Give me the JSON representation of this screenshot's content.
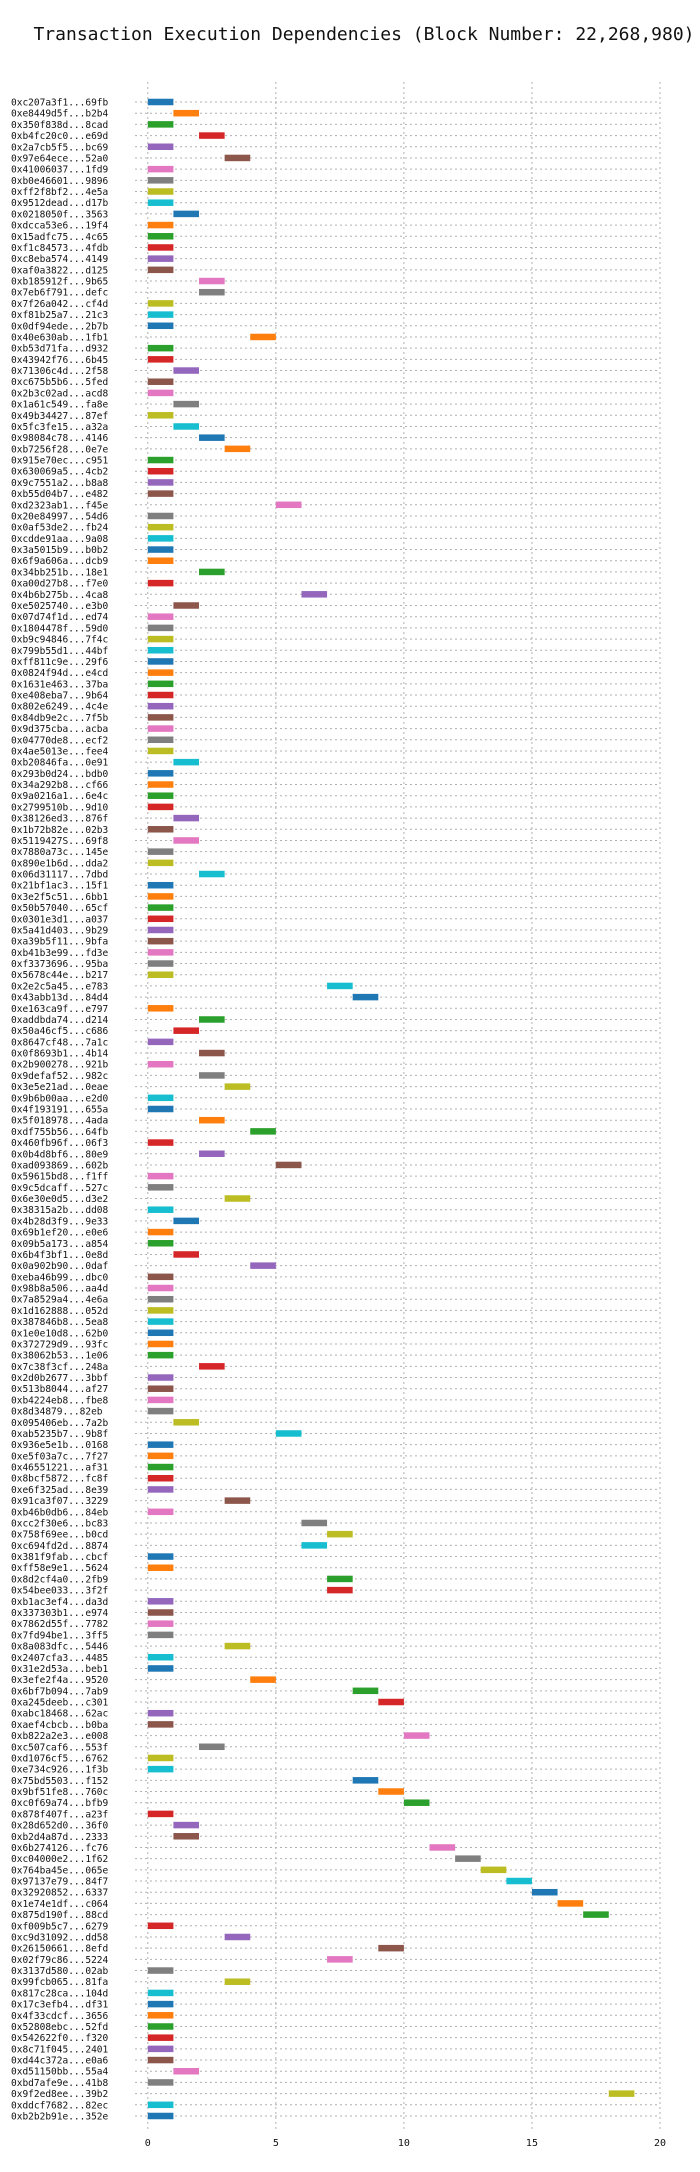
{
  "chart_data": {
    "type": "bar",
    "orientation": "horizontal-gantt",
    "title": "Transaction Execution Dependencies (Block Number: 22,268,980)",
    "xlabel": "",
    "ylabel": "",
    "xlim": [
      -0.5,
      20
    ],
    "xticks": [
      0,
      5,
      10,
      15,
      20
    ],
    "grid": true,
    "legend": "none",
    "rows": [
      {
        "label": "0xc207a3f1...69fb",
        "start": 0,
        "color": "#1f77b4"
      },
      {
        "label": "0xe8449d5f...b2b4",
        "start": 1,
        "color": "#ff7f0e"
      },
      {
        "label": "0x350f838d...8cad",
        "start": 0,
        "color": "#2ca02c"
      },
      {
        "label": "0xb4fc20c0...e69d",
        "start": 2,
        "color": "#d62728"
      },
      {
        "label": "0x2a7cb5f5...bc69",
        "start": 0,
        "color": "#9467bd"
      },
      {
        "label": "0x97e64ece...52a0",
        "start": 3,
        "color": "#8c564b"
      },
      {
        "label": "0x41006037...1fd9",
        "start": 0,
        "color": "#e377c2"
      },
      {
        "label": "0xb0e46601...9896",
        "start": 0,
        "color": "#7f7f7f"
      },
      {
        "label": "0xff2f8bf2...4e5a",
        "start": 0,
        "color": "#bcbd22"
      },
      {
        "label": "0x9512dead...d17b",
        "start": 0,
        "color": "#17becf"
      },
      {
        "label": "0x0218050f...3563",
        "start": 1,
        "color": "#1f77b4"
      },
      {
        "label": "0xdcca53e6...19f4",
        "start": 0,
        "color": "#ff7f0e"
      },
      {
        "label": "0x15adfc75...4c65",
        "start": 0,
        "color": "#2ca02c"
      },
      {
        "label": "0xf1c84573...4fdb",
        "start": 0,
        "color": "#d62728"
      },
      {
        "label": "0xc8eba574...4149",
        "start": 0,
        "color": "#9467bd"
      },
      {
        "label": "0xaf0a3822...d125",
        "start": 0,
        "color": "#8c564b"
      },
      {
        "label": "0xb185912f...9b65",
        "start": 2,
        "color": "#e377c2"
      },
      {
        "label": "0x7eb6f791...defc",
        "start": 2,
        "color": "#7f7f7f"
      },
      {
        "label": "0x7f26a042...cf4d",
        "start": 0,
        "color": "#bcbd22"
      },
      {
        "label": "0xf81b25a7...21c3",
        "start": 0,
        "color": "#17becf"
      },
      {
        "label": "0x0df94ede...2b7b",
        "start": 0,
        "color": "#1f77b4"
      },
      {
        "label": "0x40e630ab...1fb1",
        "start": 4,
        "color": "#ff7f0e"
      },
      {
        "label": "0xb53d71fa...d932",
        "start": 0,
        "color": "#2ca02c"
      },
      {
        "label": "0x43942f76...6b45",
        "start": 0,
        "color": "#d62728"
      },
      {
        "label": "0x71306c4d...2f58",
        "start": 1,
        "color": "#9467bd"
      },
      {
        "label": "0xc675b5b6...5fed",
        "start": 0,
        "color": "#8c564b"
      },
      {
        "label": "0x2b3c02ad...acd8",
        "start": 0,
        "color": "#e377c2"
      },
      {
        "label": "0x1a61c549...fa8e",
        "start": 1,
        "color": "#7f7f7f"
      },
      {
        "label": "0x49b34427...87ef",
        "start": 0,
        "color": "#bcbd22"
      },
      {
        "label": "0x5fc3fe15...a32a",
        "start": 1,
        "color": "#17becf"
      },
      {
        "label": "0x98084c78...4146",
        "start": 2,
        "color": "#1f77b4"
      },
      {
        "label": "0xb7256f28...0e7e",
        "start": 3,
        "color": "#ff7f0e"
      },
      {
        "label": "0x915e70ec...c951",
        "start": 0,
        "color": "#2ca02c"
      },
      {
        "label": "0x630069a5...4cb2",
        "start": 0,
        "color": "#d62728"
      },
      {
        "label": "0x9c7551a2...b8a8",
        "start": 0,
        "color": "#9467bd"
      },
      {
        "label": "0xb55d04b7...e482",
        "start": 0,
        "color": "#8c564b"
      },
      {
        "label": "0xd2323ab1...f45e",
        "start": 5,
        "color": "#e377c2"
      },
      {
        "label": "0x20e84997...54d6",
        "start": 0,
        "color": "#7f7f7f"
      },
      {
        "label": "0x0af53de2...fb24",
        "start": 0,
        "color": "#bcbd22"
      },
      {
        "label": "0xcdde91aa...9a08",
        "start": 0,
        "color": "#17becf"
      },
      {
        "label": "0x3a5015b9...b0b2",
        "start": 0,
        "color": "#1f77b4"
      },
      {
        "label": "0x6f9a606a...dcb9",
        "start": 0,
        "color": "#ff7f0e"
      },
      {
        "label": "0x34bb251b...18e1",
        "start": 2,
        "color": "#2ca02c"
      },
      {
        "label": "0xa00d27b8...f7e0",
        "start": 0,
        "color": "#d62728"
      },
      {
        "label": "0x4b6b275b...4ca8",
        "start": 6,
        "color": "#9467bd"
      },
      {
        "label": "0xe5025740...e3b0",
        "start": 1,
        "color": "#8c564b"
      },
      {
        "label": "0x07d74f1d...ed74",
        "start": 0,
        "color": "#e377c2"
      },
      {
        "label": "0x1804478f...59d0",
        "start": 0,
        "color": "#7f7f7f"
      },
      {
        "label": "0xb9c94846...7f4c",
        "start": 0,
        "color": "#bcbd22"
      },
      {
        "label": "0x799b55d1...44bf",
        "start": 0,
        "color": "#17becf"
      },
      {
        "label": "0xff811c9e...29f6",
        "start": 0,
        "color": "#1f77b4"
      },
      {
        "label": "0x0824f94d...e4cd",
        "start": 0,
        "color": "#ff7f0e"
      },
      {
        "label": "0x1631e463...37ba",
        "start": 0,
        "color": "#2ca02c"
      },
      {
        "label": "0xe408eba7...9b64",
        "start": 0,
        "color": "#d62728"
      },
      {
        "label": "0x802e6249...4c4e",
        "start": 0,
        "color": "#9467bd"
      },
      {
        "label": "0x84db9e2c...7f5b",
        "start": 0,
        "color": "#8c564b"
      },
      {
        "label": "0x9d375cba...acba",
        "start": 0,
        "color": "#e377c2"
      },
      {
        "label": "0x04770de8...ecf2",
        "start": 0,
        "color": "#7f7f7f"
      },
      {
        "label": "0x4ae5013e...fee4",
        "start": 0,
        "color": "#bcbd22"
      },
      {
        "label": "0xb20846fa...0e91",
        "start": 1,
        "color": "#17becf"
      },
      {
        "label": "0x293b0d24...bdb0",
        "start": 0,
        "color": "#1f77b4"
      },
      {
        "label": "0x34a292b8...cf66",
        "start": 0,
        "color": "#ff7f0e"
      },
      {
        "label": "0x9a0216a1...6e4c",
        "start": 0,
        "color": "#2ca02c"
      },
      {
        "label": "0x2799510b...9d10",
        "start": 0,
        "color": "#d62728"
      },
      {
        "label": "0x38126ed3...876f",
        "start": 1,
        "color": "#9467bd"
      },
      {
        "label": "0x1b72b82e...02b3",
        "start": 0,
        "color": "#8c564b"
      },
      {
        "label": "0x5119427S...69f8",
        "start": 1,
        "color": "#e377c2"
      },
      {
        "label": "0x7880a73c...145e",
        "start": 0,
        "color": "#7f7f7f"
      },
      {
        "label": "0x890e1b6d...dda2",
        "start": 0,
        "color": "#bcbd22"
      },
      {
        "label": "0x06d31117...7dbd",
        "start": 2,
        "color": "#17becf"
      },
      {
        "label": "0x21bf1ac3...15f1",
        "start": 0,
        "color": "#1f77b4"
      },
      {
        "label": "0x3e2f5c51...6bb1",
        "start": 0,
        "color": "#ff7f0e"
      },
      {
        "label": "0x50b57040...65cf",
        "start": 0,
        "color": "#2ca02c"
      },
      {
        "label": "0x0301e3d1...a037",
        "start": 0,
        "color": "#d62728"
      },
      {
        "label": "0x5a41d403...9b29",
        "start": 0,
        "color": "#9467bd"
      },
      {
        "label": "0xa39b5f11...9bfa",
        "start": 0,
        "color": "#8c564b"
      },
      {
        "label": "0xb41b3e99...fd3e",
        "start": 0,
        "color": "#e377c2"
      },
      {
        "label": "0xf3373696...95ba",
        "start": 0,
        "color": "#7f7f7f"
      },
      {
        "label": "0x5678c44e...b217",
        "start": 0,
        "color": "#bcbd22"
      },
      {
        "label": "0x2e2c5a45...e783",
        "start": 7,
        "color": "#17becf"
      },
      {
        "label": "0x43abb13d...84d4",
        "start": 8,
        "color": "#1f77b4"
      },
      {
        "label": "0xe163ca9f...e797",
        "start": 0,
        "color": "#ff7f0e"
      },
      {
        "label": "0xaddbda74...d214",
        "start": 2,
        "color": "#2ca02c"
      },
      {
        "label": "0x50a46cf5...c686",
        "start": 1,
        "color": "#d62728"
      },
      {
        "label": "0x8647cf48...7a1c",
        "start": 0,
        "color": "#9467bd"
      },
      {
        "label": "0x0f8693b1...4b14",
        "start": 2,
        "color": "#8c564b"
      },
      {
        "label": "0x2b900278...921b",
        "start": 0,
        "color": "#e377c2"
      },
      {
        "label": "0x9defaf52...982c",
        "start": 2,
        "color": "#7f7f7f"
      },
      {
        "label": "0x3e5e21ad...0eae",
        "start": 3,
        "color": "#bcbd22"
      },
      {
        "label": "0x9b6b00aa...e2d0",
        "start": 0,
        "color": "#17becf"
      },
      {
        "label": "0x4f193191...655a",
        "start": 0,
        "color": "#1f77b4"
      },
      {
        "label": "0x5f018978...4ada",
        "start": 2,
        "color": "#ff7f0e"
      },
      {
        "label": "0xdf755b56...64fb",
        "start": 4,
        "color": "#2ca02c"
      },
      {
        "label": "0x460fb96f...06f3",
        "start": 0,
        "color": "#d62728"
      },
      {
        "label": "0x0b4d8bf6...80e9",
        "start": 2,
        "color": "#9467bd"
      },
      {
        "label": "0xad093869...602b",
        "start": 5,
        "color": "#8c564b"
      },
      {
        "label": "0x59615bd8...f1ff",
        "start": 0,
        "color": "#e377c2"
      },
      {
        "label": "0x9c5dcaff...527c",
        "start": 0,
        "color": "#7f7f7f"
      },
      {
        "label": "0x6e30e0d5...d3e2",
        "start": 3,
        "color": "#bcbd22"
      },
      {
        "label": "0x38315a2b...dd08",
        "start": 0,
        "color": "#17becf"
      },
      {
        "label": "0x4b28d3f9...9e33",
        "start": 1,
        "color": "#1f77b4"
      },
      {
        "label": "0x69b1ef20...e0e6",
        "start": 0,
        "color": "#ff7f0e"
      },
      {
        "label": "0x09b5a173...a854",
        "start": 0,
        "color": "#2ca02c"
      },
      {
        "label": "0x6b4f3bf1...0e8d",
        "start": 1,
        "color": "#d62728"
      },
      {
        "label": "0x0a902b90...0daf",
        "start": 4,
        "color": "#9467bd"
      },
      {
        "label": "0xeba46b99...dbc0",
        "start": 0,
        "color": "#8c564b"
      },
      {
        "label": "0x98b8a506...aa4d",
        "start": 0,
        "color": "#e377c2"
      },
      {
        "label": "0x7a8529a4...4e6a",
        "start": 0,
        "color": "#7f7f7f"
      },
      {
        "label": "0x1d162888...052d",
        "start": 0,
        "color": "#bcbd22"
      },
      {
        "label": "0x387846b8...5ea8",
        "start": 0,
        "color": "#17becf"
      },
      {
        "label": "0x1e0e10d8...62b0",
        "start": 0,
        "color": "#1f77b4"
      },
      {
        "label": "0x372729d9...93fc",
        "start": 0,
        "color": "#ff7f0e"
      },
      {
        "label": "0x38062b53...1e06",
        "start": 0,
        "color": "#2ca02c"
      },
      {
        "label": "0x7c38f3cf...248a",
        "start": 2,
        "color": "#d62728"
      },
      {
        "label": "0x2d0b2677...3bbf",
        "start": 0,
        "color": "#9467bd"
      },
      {
        "label": "0x513b8044...af27",
        "start": 0,
        "color": "#8c564b"
      },
      {
        "label": "0xb4224eb8...fbe8",
        "start": 0,
        "color": "#e377c2"
      },
      {
        "label": "0x8d34879...82eb",
        "start": 0,
        "color": "#7f7f7f"
      },
      {
        "label": "0x095406eb...7a2b",
        "start": 1,
        "color": "#bcbd22"
      },
      {
        "label": "0xab5235b7...9b8f",
        "start": 5,
        "color": "#17becf"
      },
      {
        "label": "0x936e5e1b...0168",
        "start": 0,
        "color": "#1f77b4"
      },
      {
        "label": "0xe5f03a7c...7f27",
        "start": 0,
        "color": "#ff7f0e"
      },
      {
        "label": "0x46551221...af31",
        "start": 0,
        "color": "#2ca02c"
      },
      {
        "label": "0x8bcf5872...fc8f",
        "start": 0,
        "color": "#d62728"
      },
      {
        "label": "0xe6f325ad...8e39",
        "start": 0,
        "color": "#9467bd"
      },
      {
        "label": "0x91ca3f07...3229",
        "start": 3,
        "color": "#8c564b"
      },
      {
        "label": "0xb46b0db6...84eb",
        "start": 0,
        "color": "#e377c2"
      },
      {
        "label": "0xcc2f30e6...bc83",
        "start": 6,
        "color": "#7f7f7f"
      },
      {
        "label": "0x758f69ee...b0cd",
        "start": 7,
        "color": "#bcbd22"
      },
      {
        "label": "0xc694fd2d...8874",
        "start": 6,
        "color": "#17becf"
      },
      {
        "label": "0x381f9fab...cbcf",
        "start": 0,
        "color": "#1f77b4"
      },
      {
        "label": "0xff58e9e1...5624",
        "start": 0,
        "color": "#ff7f0e"
      },
      {
        "label": "0x8d2cf4a0...2fb9",
        "start": 7,
        "color": "#2ca02c"
      },
      {
        "label": "0x54bee033...3f2f",
        "start": 7,
        "color": "#d62728"
      },
      {
        "label": "0xb1ac3ef4...da3d",
        "start": 0,
        "color": "#9467bd"
      },
      {
        "label": "0x337303b1...e974",
        "start": 0,
        "color": "#8c564b"
      },
      {
        "label": "0x7862d55f...7782",
        "start": 0,
        "color": "#e377c2"
      },
      {
        "label": "0x7fd94be1...3ff5",
        "start": 0,
        "color": "#7f7f7f"
      },
      {
        "label": "0x8a083dfc...5446",
        "start": 3,
        "color": "#bcbd22"
      },
      {
        "label": "0x2407cfa3...4485",
        "start": 0,
        "color": "#17becf"
      },
      {
        "label": "0x31e2d53a...beb1",
        "start": 0,
        "color": "#1f77b4"
      },
      {
        "label": "0x3efe2f4a...9520",
        "start": 4,
        "color": "#ff7f0e"
      },
      {
        "label": "0x6bf7b094...7ab9",
        "start": 8,
        "color": "#2ca02c"
      },
      {
        "label": "0xa245deeb...c301",
        "start": 9,
        "color": "#d62728"
      },
      {
        "label": "0xabc18468...62ac",
        "start": 0,
        "color": "#9467bd"
      },
      {
        "label": "0xaef4cbcb...b0ba",
        "start": 0,
        "color": "#8c564b"
      },
      {
        "label": "0xb822a2e3...e008",
        "start": 10,
        "color": "#e377c2"
      },
      {
        "label": "0xc507caf6...553f",
        "start": 2,
        "color": "#7f7f7f"
      },
      {
        "label": "0xd1076cf5...6762",
        "start": 0,
        "color": "#bcbd22"
      },
      {
        "label": "0xe734c926...1f3b",
        "start": 0,
        "color": "#17becf"
      },
      {
        "label": "0x75bd5503...f152",
        "start": 8,
        "color": "#1f77b4"
      },
      {
        "label": "0x9bf51fe8...760c",
        "start": 9,
        "color": "#ff7f0e"
      },
      {
        "label": "0xc0f69a74...bfb9",
        "start": 10,
        "color": "#2ca02c"
      },
      {
        "label": "0x878f407f...a23f",
        "start": 0,
        "color": "#d62728"
      },
      {
        "label": "0x28d652d0...36f0",
        "start": 1,
        "color": "#9467bd"
      },
      {
        "label": "0xb2d4a87d...2333",
        "start": 1,
        "color": "#8c564b"
      },
      {
        "label": "0x6b274126...fc76",
        "start": 11,
        "color": "#e377c2"
      },
      {
        "label": "0xc04000e2...1f62",
        "start": 12,
        "color": "#7f7f7f"
      },
      {
        "label": "0x764ba45e...065e",
        "start": 13,
        "color": "#bcbd22"
      },
      {
        "label": "0x97137e79...84f7",
        "start": 14,
        "color": "#17becf"
      },
      {
        "label": "0x32920852...6337",
        "start": 15,
        "color": "#1f77b4"
      },
      {
        "label": "0x1e74e1df...c064",
        "start": 16,
        "color": "#ff7f0e"
      },
      {
        "label": "0x875d190f...88cd",
        "start": 17,
        "color": "#2ca02c"
      },
      {
        "label": "0xf009b5c7...6279",
        "start": 0,
        "color": "#d62728"
      },
      {
        "label": "0xc9d31092...dd58",
        "start": 3,
        "color": "#9467bd"
      },
      {
        "label": "0x26150661...8efd",
        "start": 9,
        "color": "#8c564b"
      },
      {
        "label": "0x02f79c86...5224",
        "start": 7,
        "color": "#e377c2"
      },
      {
        "label": "0x3137d580...02ab",
        "start": 0,
        "color": "#7f7f7f"
      },
      {
        "label": "0x99fcb065...81fa",
        "start": 3,
        "color": "#bcbd22"
      },
      {
        "label": "0x817c28ca...104d",
        "start": 0,
        "color": "#17becf"
      },
      {
        "label": "0x17c3efb4...df31",
        "start": 0,
        "color": "#1f77b4"
      },
      {
        "label": "0x4f33cdcf...3656",
        "start": 0,
        "color": "#ff7f0e"
      },
      {
        "label": "0x52808ebc...52fd",
        "start": 0,
        "color": "#2ca02c"
      },
      {
        "label": "0x542622f0...f320",
        "start": 0,
        "color": "#d62728"
      },
      {
        "label": "0x8c71f045...2401",
        "start": 0,
        "color": "#9467bd"
      },
      {
        "label": "0xd44c372a...e0a6",
        "start": 0,
        "color": "#8c564b"
      },
      {
        "label": "0xd51150bb...55a4",
        "start": 1,
        "color": "#e377c2"
      },
      {
        "label": "0xbd7afe9e...41b8",
        "start": 0,
        "color": "#7f7f7f"
      },
      {
        "label": "0x9f2ed8ee...39b2",
        "start": 18,
        "color": "#bcbd22"
      },
      {
        "label": "0xddcf7682...82ec",
        "start": 0,
        "color": "#17becf"
      },
      {
        "label": "0xb2b2b91e...352e",
        "start": 0,
        "color": "#1f77b4"
      }
    ]
  }
}
